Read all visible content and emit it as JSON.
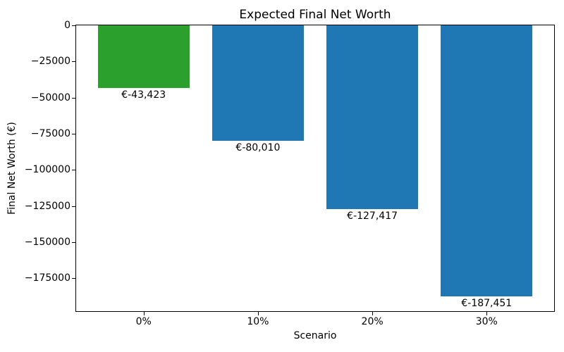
{
  "figure": {
    "background_color": "#ffffff",
    "axis_color": "#000000"
  },
  "chart_data": {
    "type": "bar",
    "title": "Expected Final Net Worth",
    "xlabel": "Scenario",
    "ylabel": "Final Net Worth (€)",
    "categories": [
      "0%",
      "10%",
      "20%",
      "30%"
    ],
    "values": [
      -43423,
      -80010,
      -127417,
      -187451
    ],
    "value_labels": [
      "€-43,423",
      "€-80,010",
      "€-127,417",
      "€-187,451"
    ],
    "bar_colors": [
      "#2ca02c",
      "#1f77b4",
      "#1f77b4",
      "#1f77b4"
    ],
    "ylim": [
      -197850,
      0
    ],
    "yticks": {
      "values": [
        0,
        -25000,
        -50000,
        -75000,
        -100000,
        -125000,
        -150000,
        -175000
      ],
      "labels": [
        "0",
        "−25000",
        "−50000",
        "−75000",
        "−100000",
        "−125000",
        "−150000",
        "−175000"
      ]
    },
    "grid": false,
    "legend": null,
    "bar_width_fraction": 0.8
  }
}
